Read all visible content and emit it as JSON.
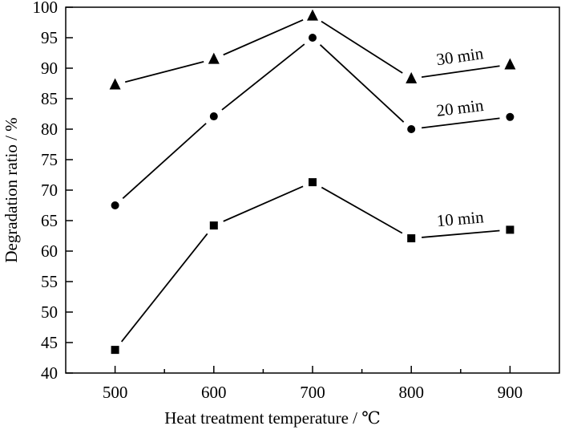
{
  "chart_data": {
    "type": "line",
    "title": "",
    "xlabel": "Heat treatment temperature / ℃",
    "ylabel": "Degradation ratio / %",
    "x": [
      500,
      600,
      700,
      800,
      900
    ],
    "xlim": [
      450,
      950
    ],
    "ylim": [
      40,
      100
    ],
    "xticks": [
      "500",
      "600",
      "700",
      "800",
      "900"
    ],
    "yticks": [
      "40",
      "45",
      "50",
      "55",
      "60",
      "65",
      "70",
      "75",
      "80",
      "85",
      "90",
      "95",
      "100"
    ],
    "grid": false,
    "series": [
      {
        "name": "30 min",
        "marker": "triangle",
        "values": [
          87.3,
          91.5,
          98.6,
          88.3,
          90.6
        ]
      },
      {
        "name": "20 min",
        "marker": "circle",
        "values": [
          67.5,
          82.1,
          95.0,
          80.0,
          82.0
        ]
      },
      {
        "name": "10 min",
        "marker": "square",
        "values": [
          43.8,
          64.2,
          71.3,
          62.1,
          63.5
        ]
      }
    ],
    "colors": {
      "line": "#000000",
      "marker": "#000000",
      "background": "#ffffff"
    }
  }
}
